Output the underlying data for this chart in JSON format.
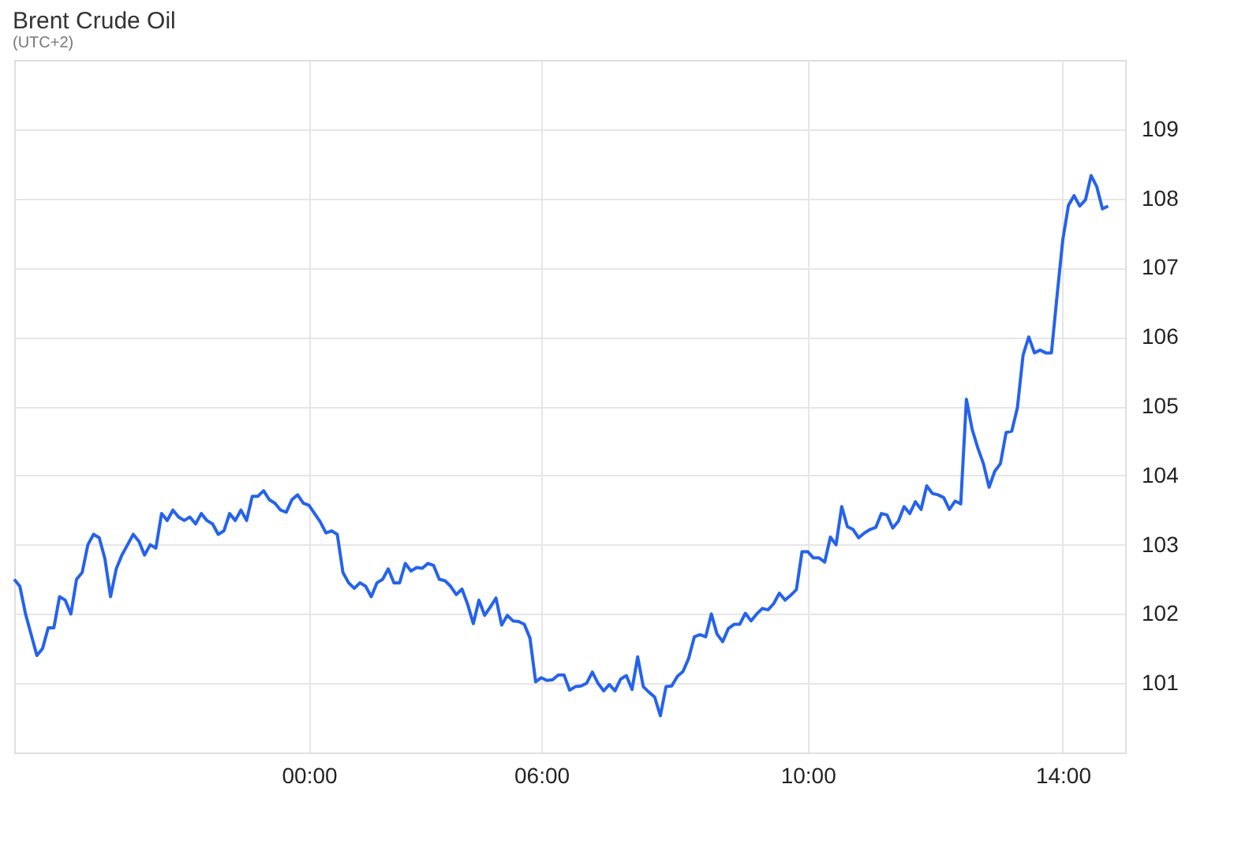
{
  "chart_data": {
    "type": "line",
    "title": "Brent Crude Oil",
    "subtitle": "(UTC+2)",
    "categories": [
      null,
      null,
      null,
      null,
      null,
      null,
      null,
      null,
      null,
      null,
      null,
      null,
      null,
      null,
      null,
      null,
      null,
      null,
      null,
      null,
      null,
      null,
      null,
      null,
      null,
      null,
      null,
      null,
      null,
      null,
      null,
      null,
      null,
      null,
      null,
      null,
      null,
      null,
      null,
      null,
      null,
      null,
      null,
      null,
      null,
      null,
      null,
      null,
      null,
      null,
      null,
      null,
      "00:00",
      null,
      null,
      null,
      null,
      null,
      null,
      null,
      null,
      null,
      null,
      null,
      null,
      null,
      null,
      null,
      null,
      null,
      null,
      null,
      null,
      null,
      null,
      null,
      null,
      null,
      null,
      null,
      null,
      null,
      null,
      null,
      null,
      null,
      null,
      null,
      null,
      null,
      null,
      null,
      null,
      "06:00",
      null,
      null,
      null,
      null,
      null,
      null,
      null,
      null,
      null,
      null,
      null,
      null,
      null,
      null,
      null,
      null,
      null,
      null,
      null,
      null,
      null,
      null,
      null,
      null,
      null,
      null,
      null,
      null,
      null,
      null,
      null,
      null,
      null,
      null,
      null,
      null,
      null,
      null,
      null,
      null,
      null,
      null,
      null,
      null,
      null,
      null,
      "10:00",
      null,
      null,
      null,
      null,
      null,
      null,
      null,
      null,
      null,
      null,
      null,
      null,
      null,
      null,
      null,
      null,
      null,
      null,
      null,
      null,
      null,
      null,
      null,
      null,
      null,
      null,
      null,
      null,
      null,
      null,
      null,
      null,
      null,
      null,
      null,
      null,
      null,
      null,
      null,
      null,
      null,
      null,
      null,
      null,
      "14:00",
      null,
      null,
      null,
      null,
      null,
      null,
      null,
      null
    ],
    "series": [
      {
        "color": "#2563eb",
        "values": [
          102.5,
          102.4,
          102.0,
          101.7,
          101.4,
          101.5,
          101.8,
          101.8,
          102.25,
          102.2,
          102.0,
          102.5,
          102.6,
          103.0,
          103.15,
          103.1,
          102.8,
          102.25,
          102.65,
          102.85,
          103.0,
          103.15,
          103.05,
          102.85,
          103.0,
          102.95,
          103.45,
          103.35,
          103.5,
          103.4,
          103.35,
          103.4,
          103.3,
          103.45,
          103.35,
          103.3,
          103.15,
          103.2,
          103.45,
          103.35,
          103.5,
          103.35,
          103.7,
          103.7,
          103.78,
          103.65,
          103.6,
          103.5,
          103.47,
          103.65,
          103.72,
          103.6,
          103.57,
          103.45,
          103.33,
          103.17,
          103.2,
          103.15,
          102.6,
          102.45,
          102.37,
          102.45,
          102.4,
          102.25,
          102.45,
          102.5,
          102.65,
          102.45,
          102.45,
          102.73,
          102.62,
          102.67,
          102.66,
          102.73,
          102.7,
          102.5,
          102.48,
          102.4,
          102.28,
          102.36,
          102.14,
          101.86,
          102.2,
          101.98,
          102.1,
          102.23,
          101.84,
          101.98,
          101.9,
          101.89,
          101.85,
          101.65,
          101.02,
          101.08,
          101.04,
          101.05,
          101.12,
          101.12,
          100.9,
          100.95,
          100.96,
          101.0,
          101.16,
          101.0,
          100.89,
          100.98,
          100.89,
          101.06,
          101.11,
          100.91,
          101.38,
          100.95,
          100.87,
          100.8,
          100.53,
          100.95,
          100.96,
          101.1,
          101.17,
          101.36,
          101.67,
          101.7,
          101.67,
          102.0,
          101.71,
          101.6,
          101.79,
          101.85,
          101.85,
          102.01,
          101.9,
          102.0,
          102.08,
          102.06,
          102.15,
          102.3,
          102.2,
          102.27,
          102.35,
          102.9,
          102.9,
          102.81,
          102.81,
          102.75,
          103.11,
          103.0,
          103.55,
          103.26,
          103.22,
          103.1,
          103.17,
          103.22,
          103.25,
          103.45,
          103.43,
          103.24,
          103.34,
          103.55,
          103.45,
          103.62,
          103.51,
          103.85,
          103.74,
          103.72,
          103.68,
          103.51,
          103.63,
          103.59,
          105.1,
          104.67,
          104.4,
          104.17,
          103.83,
          104.06,
          104.17,
          104.62,
          104.64,
          104.98,
          105.74,
          106.0,
          105.77,
          105.81,
          105.77,
          105.77,
          106.6,
          107.4,
          107.9,
          108.04,
          107.89,
          107.98,
          108.33,
          108.17,
          107.85,
          107.89
        ]
      }
    ],
    "ylim": [
      100,
      110
    ],
    "yticks": [
      101,
      102,
      103,
      104,
      105,
      106,
      107,
      108,
      109
    ],
    "grid": true,
    "marker": "none",
    "line_style": "solid"
  }
}
